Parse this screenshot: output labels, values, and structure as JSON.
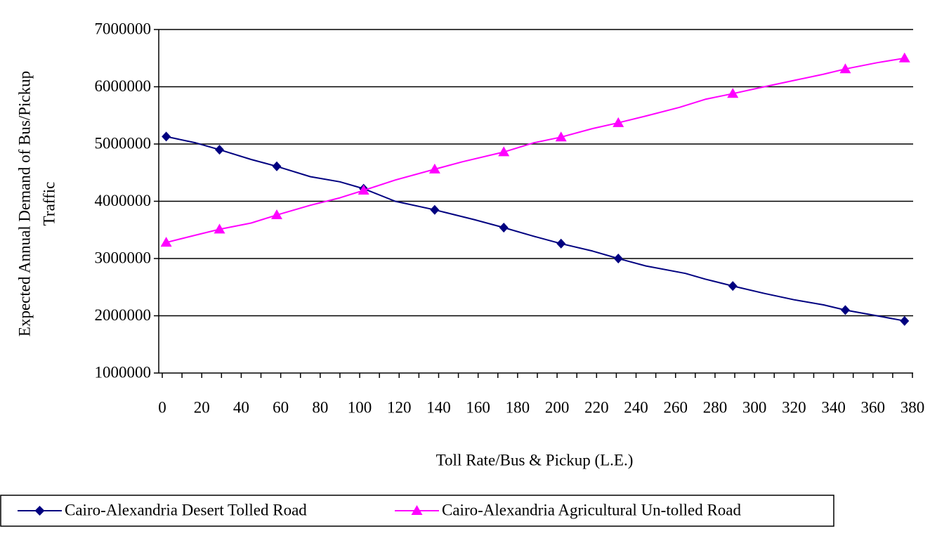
{
  "chart_data": {
    "type": "line",
    "title": "",
    "xlabel": "Toll Rate/Bus & Pickup (L.E.)",
    "ylabel": "Expected Annual Demand of Bus/Pickup",
    "ylabel_line2": "Traffic",
    "xlim": [
      0,
      380
    ],
    "ylim": [
      1000000,
      7000000
    ],
    "x_ticks": [
      "0",
      "20",
      "40",
      "60",
      "80",
      "100",
      "120",
      "140",
      "160",
      "180",
      "200",
      "220",
      "240",
      "260",
      "280",
      "300",
      "320",
      "340",
      "360",
      "380"
    ],
    "y_ticks": [
      "1000000",
      "2000000",
      "3000000",
      "4000000",
      "5000000",
      "6000000",
      "7000000"
    ],
    "grid": "horizontal",
    "legend_position": "bottom",
    "series": [
      {
        "name": "Cairo-Alexandria Desert Tolled Road",
        "color": "#000080",
        "marker": "diamond",
        "points": [
          [
            2,
            5130000
          ],
          [
            17,
            5020000
          ],
          [
            29,
            4900000
          ],
          [
            45,
            4730000
          ],
          [
            58,
            4610000
          ],
          [
            75,
            4430000
          ],
          [
            90,
            4340000
          ],
          [
            102,
            4220000
          ],
          [
            118,
            4000000
          ],
          [
            138,
            3850000
          ],
          [
            158,
            3680000
          ],
          [
            173,
            3540000
          ],
          [
            188,
            3390000
          ],
          [
            202,
            3260000
          ],
          [
            218,
            3130000
          ],
          [
            231,
            3000000
          ],
          [
            245,
            2870000
          ],
          [
            265,
            2740000
          ],
          [
            275,
            2640000
          ],
          [
            289,
            2520000
          ],
          [
            305,
            2390000
          ],
          [
            320,
            2280000
          ],
          [
            335,
            2190000
          ],
          [
            346,
            2100000
          ],
          [
            362,
            2000000
          ],
          [
            376,
            1910000
          ]
        ],
        "marker_x": [
          2,
          29,
          58,
          102,
          138,
          173,
          202,
          231,
          289,
          346,
          376
        ]
      },
      {
        "name": "Cairo-Alexandria Agricultural Un-tolled Road",
        "color": "#ff00ff",
        "marker": "triangle",
        "points": [
          [
            2,
            3280000
          ],
          [
            17,
            3410000
          ],
          [
            29,
            3510000
          ],
          [
            45,
            3620000
          ],
          [
            58,
            3760000
          ],
          [
            75,
            3930000
          ],
          [
            90,
            4060000
          ],
          [
            102,
            4190000
          ],
          [
            118,
            4370000
          ],
          [
            138,
            4560000
          ],
          [
            152,
            4690000
          ],
          [
            173,
            4860000
          ],
          [
            188,
            5020000
          ],
          [
            202,
            5120000
          ],
          [
            218,
            5270000
          ],
          [
            231,
            5370000
          ],
          [
            245,
            5490000
          ],
          [
            262,
            5640000
          ],
          [
            275,
            5780000
          ],
          [
            289,
            5880000
          ],
          [
            305,
            6000000
          ],
          [
            320,
            6110000
          ],
          [
            335,
            6220000
          ],
          [
            346,
            6310000
          ],
          [
            362,
            6420000
          ],
          [
            376,
            6500000
          ]
        ],
        "marker_x": [
          2,
          29,
          58,
          102,
          138,
          173,
          202,
          231,
          289,
          346,
          376
        ]
      }
    ]
  }
}
